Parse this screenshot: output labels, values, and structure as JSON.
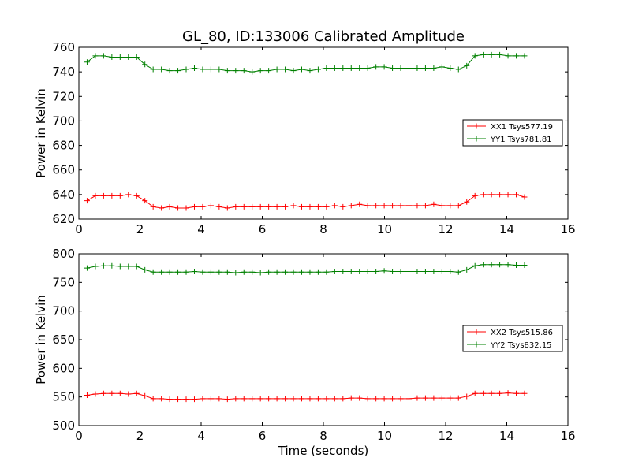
{
  "chart_data": [
    {
      "type": "line",
      "title": "GL_80, ID:133006 Calibrated Amplitude",
      "xlabel": "",
      "ylabel": "Power in Kelvin",
      "xlim": [
        0,
        16
      ],
      "ylim": [
        620,
        760
      ],
      "xticks": [
        0,
        2,
        4,
        6,
        8,
        10,
        12,
        14,
        16
      ],
      "yticks": [
        620,
        640,
        660,
        680,
        700,
        720,
        740,
        760
      ],
      "grid": false,
      "legend_position": "center-right",
      "x": [
        0.27,
        0.54,
        0.81,
        1.08,
        1.35,
        1.62,
        1.89,
        2.16,
        2.43,
        2.7,
        2.97,
        3.24,
        3.51,
        3.78,
        4.05,
        4.32,
        4.59,
        4.86,
        5.13,
        5.4,
        5.67,
        5.94,
        6.21,
        6.48,
        6.75,
        7.02,
        7.29,
        7.56,
        7.83,
        8.1,
        8.37,
        8.64,
        8.91,
        9.18,
        9.45,
        9.72,
        9.99,
        10.26,
        10.53,
        10.8,
        11.07,
        11.34,
        11.61,
        11.88,
        12.15,
        12.42,
        12.69,
        12.96,
        13.23,
        13.5,
        13.77,
        14.04,
        14.31,
        14.58
      ],
      "series": [
        {
          "name": "XX1 Tsys577.19",
          "color": "#ff0000",
          "values": [
            635,
            639,
            639,
            639,
            639,
            640,
            639,
            635,
            630,
            629,
            630,
            629,
            629,
            630,
            630,
            631,
            630,
            629,
            630,
            630,
            630,
            630,
            630,
            630,
            630,
            631,
            630,
            630,
            630,
            630,
            631,
            630,
            631,
            632,
            631,
            631,
            631,
            631,
            631,
            631,
            631,
            631,
            632,
            631,
            631,
            631,
            634,
            639,
            640,
            640,
            640,
            640,
            640,
            638
          ]
        },
        {
          "name": "YY1 Tsys781.81",
          "color": "#008000",
          "values": [
            748,
            753,
            753,
            752,
            752,
            752,
            752,
            746,
            742,
            742,
            741,
            741,
            742,
            743,
            742,
            742,
            742,
            741,
            741,
            741,
            740,
            741,
            741,
            742,
            742,
            741,
            742,
            741,
            742,
            743,
            743,
            743,
            743,
            743,
            743,
            744,
            744,
            743,
            743,
            743,
            743,
            743,
            743,
            744,
            743,
            742,
            745,
            753,
            754,
            754,
            754,
            753,
            753,
            753
          ]
        }
      ]
    },
    {
      "type": "line",
      "title": "",
      "xlabel": "Time (seconds)",
      "ylabel": "Power in Kelvin",
      "xlim": [
        0,
        16
      ],
      "ylim": [
        500,
        800
      ],
      "xticks": [
        0,
        2,
        4,
        6,
        8,
        10,
        12,
        14,
        16
      ],
      "yticks": [
        500,
        550,
        600,
        650,
        700,
        750,
        800
      ],
      "grid": false,
      "legend_position": "center-right",
      "x": [
        0.27,
        0.54,
        0.81,
        1.08,
        1.35,
        1.62,
        1.89,
        2.16,
        2.43,
        2.7,
        2.97,
        3.24,
        3.51,
        3.78,
        4.05,
        4.32,
        4.59,
        4.86,
        5.13,
        5.4,
        5.67,
        5.94,
        6.21,
        6.48,
        6.75,
        7.02,
        7.29,
        7.56,
        7.83,
        8.1,
        8.37,
        8.64,
        8.91,
        9.18,
        9.45,
        9.72,
        9.99,
        10.26,
        10.53,
        10.8,
        11.07,
        11.34,
        11.61,
        11.88,
        12.15,
        12.42,
        12.69,
        12.96,
        13.23,
        13.5,
        13.77,
        14.04,
        14.31,
        14.58
      ],
      "series": [
        {
          "name": "XX2 Tsys515.86",
          "color": "#ff0000",
          "values": [
            553,
            555,
            556,
            556,
            556,
            555,
            556,
            552,
            547,
            547,
            546,
            546,
            546,
            546,
            547,
            547,
            547,
            546,
            547,
            547,
            547,
            547,
            547,
            547,
            547,
            547,
            547,
            547,
            547,
            547,
            547,
            547,
            548,
            548,
            547,
            547,
            547,
            547,
            547,
            547,
            548,
            548,
            548,
            548,
            548,
            548,
            551,
            556,
            556,
            556,
            556,
            557,
            556,
            556
          ]
        },
        {
          "name": "YY2 Tsys832.15",
          "color": "#008000",
          "values": [
            775,
            778,
            779,
            779,
            778,
            778,
            778,
            772,
            768,
            768,
            768,
            768,
            768,
            769,
            768,
            768,
            768,
            768,
            767,
            768,
            768,
            767,
            768,
            768,
            768,
            768,
            768,
            768,
            768,
            768,
            769,
            769,
            769,
            769,
            769,
            769,
            770,
            769,
            769,
            769,
            769,
            769,
            769,
            769,
            769,
            768,
            772,
            779,
            781,
            781,
            781,
            781,
            780,
            780
          ]
        }
      ]
    }
  ]
}
